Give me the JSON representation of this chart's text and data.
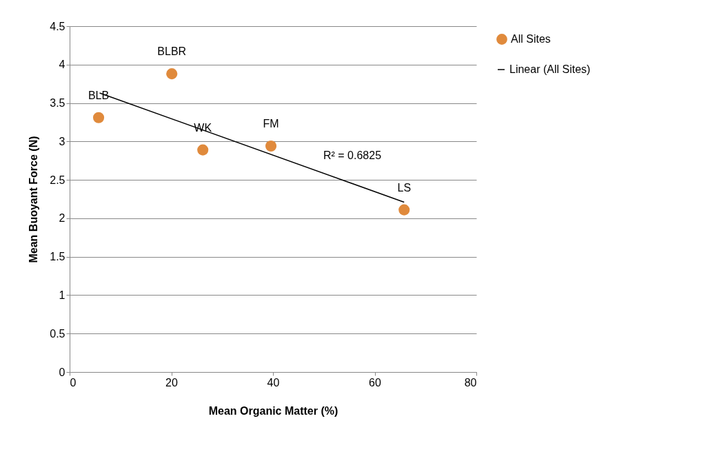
{
  "chart_data": {
    "type": "scatter",
    "xlabel": "Mean Organic Matter (%)",
    "ylabel": "Mean Buoyant Force (N)",
    "xlim": [
      0,
      80
    ],
    "xticks": [
      0,
      20,
      40,
      60,
      80
    ],
    "ylim": [
      0,
      4.5
    ],
    "yticks": [
      0,
      0.5,
      1,
      1.5,
      2,
      2.5,
      3,
      3.5,
      4,
      4.5
    ],
    "grid": "y",
    "legend": "right",
    "series": [
      {
        "name": "All Sites",
        "marker": "circle",
        "color": "#e08a3c",
        "x": [
          5.7,
          20.1,
          26.2,
          39.6,
          65.8
        ],
        "values": [
          3.31,
          3.88,
          2.89,
          2.94,
          2.11
        ]
      },
      {
        "name": "Linear (All Sites)",
        "type": "line",
        "marker": "none",
        "line_style": "solid",
        "color": "#000000",
        "x": [
          5.9,
          65.8
        ],
        "values": [
          3.63,
          2.21
        ]
      }
    ],
    "annotations": [
      {
        "text": "BLB",
        "x": 5.7,
        "y": 3.31
      },
      {
        "text": "BLBR",
        "x": 20.1,
        "y": 3.88
      },
      {
        "text": "WK",
        "x": 26.2,
        "y": 2.89
      },
      {
        "text": "FM",
        "x": 39.6,
        "y": 2.94
      },
      {
        "text": "LS",
        "x": 65.8,
        "y": 2.11
      },
      "R² = 0.6825"
    ]
  }
}
